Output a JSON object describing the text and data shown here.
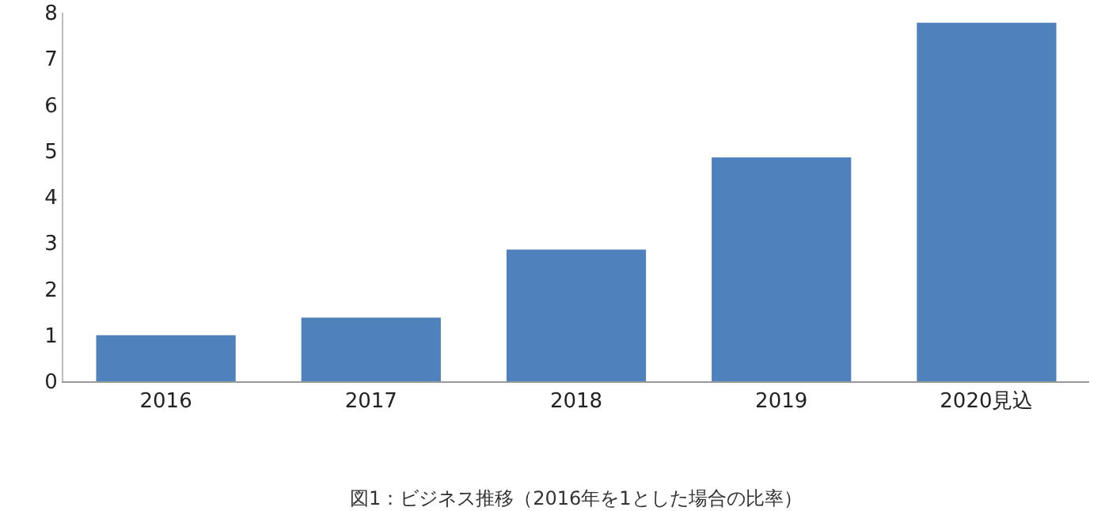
{
  "chart_data": {
    "type": "bar",
    "categories": [
      "2016",
      "2017",
      "2018",
      "2019",
      "2020見込"
    ],
    "values": [
      1.0,
      1.38,
      2.86,
      4.86,
      7.78
    ],
    "color": "#4f81bd",
    "ylim": [
      0,
      8
    ],
    "yticks": [
      0,
      1,
      2,
      3,
      4,
      5,
      6,
      7,
      8
    ],
    "grid": false,
    "legend": false,
    "annotations": [
      "図1：ビジネス推移（2016年を1とした場合の比率）"
    ]
  }
}
